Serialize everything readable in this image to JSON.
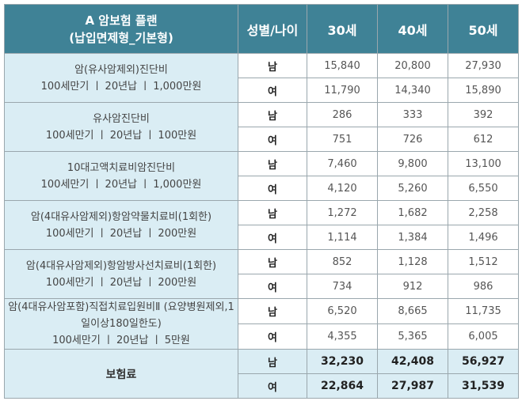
{
  "header": {
    "title_line1": "A 암보험 플랜",
    "title_line2": "(납입면제형_기본형)",
    "sex_age": "성별/나이",
    "ages": [
      "30세",
      "40세",
      "50세"
    ]
  },
  "rows": [
    {
      "lines": [
        "암(유사암제외)진단비",
        "100세만기 ㅣ 20년납 ㅣ 1,000만원"
      ],
      "male": {
        "label": "남",
        "values": [
          "15,840",
          "20,800",
          "27,930"
        ]
      },
      "female": {
        "label": "여",
        "values": [
          "11,790",
          "14,340",
          "15,890"
        ]
      }
    },
    {
      "lines": [
        "유사암진단비",
        "100세만기 ㅣ 20년납 ㅣ 100만원"
      ],
      "male": {
        "label": "남",
        "values": [
          "286",
          "333",
          "392"
        ]
      },
      "female": {
        "label": "여",
        "values": [
          "751",
          "726",
          "612"
        ]
      }
    },
    {
      "lines": [
        "10대고액치료비암진단비",
        "100세만기 ㅣ 20년납 ㅣ 1,000만원"
      ],
      "male": {
        "label": "남",
        "values": [
          "7,460",
          "9,800",
          "13,100"
        ]
      },
      "female": {
        "label": "여",
        "values": [
          "4,120",
          "5,260",
          "6,550"
        ]
      }
    },
    {
      "lines": [
        "암(4대유사암제외)항암약물치료비(1회한)",
        "100세만기 ㅣ 20년납 ㅣ 200만원"
      ],
      "male": {
        "label": "남",
        "values": [
          "1,272",
          "1,682",
          "2,258"
        ]
      },
      "female": {
        "label": "여",
        "values": [
          "1,114",
          "1,384",
          "1,496"
        ]
      }
    },
    {
      "lines": [
        "암(4대유사암제외)항암방사선치료비(1회한)",
        "100세만기 ㅣ 20년납 ㅣ 200만원"
      ],
      "male": {
        "label": "남",
        "values": [
          "852",
          "1,128",
          "1,512"
        ]
      },
      "female": {
        "label": "여",
        "values": [
          "734",
          "912",
          "986"
        ]
      }
    },
    {
      "lines": [
        "암(4대유사암포함)직접치료입원비Ⅱ (요양병원제외,1일이상180일한도)",
        "100세만기 ㅣ 20년납 ㅣ 5만원"
      ],
      "male": {
        "label": "남",
        "values": [
          "6,520",
          "8,665",
          "11,735"
        ]
      },
      "female": {
        "label": "여",
        "values": [
          "4,355",
          "5,365",
          "6,005"
        ]
      }
    }
  ],
  "total": {
    "label": "보험료",
    "male": {
      "label": "남",
      "values": [
        "32,230",
        "42,408",
        "56,927"
      ]
    },
    "female": {
      "label": "여",
      "values": [
        "22,864",
        "27,987",
        "31,539"
      ]
    }
  }
}
